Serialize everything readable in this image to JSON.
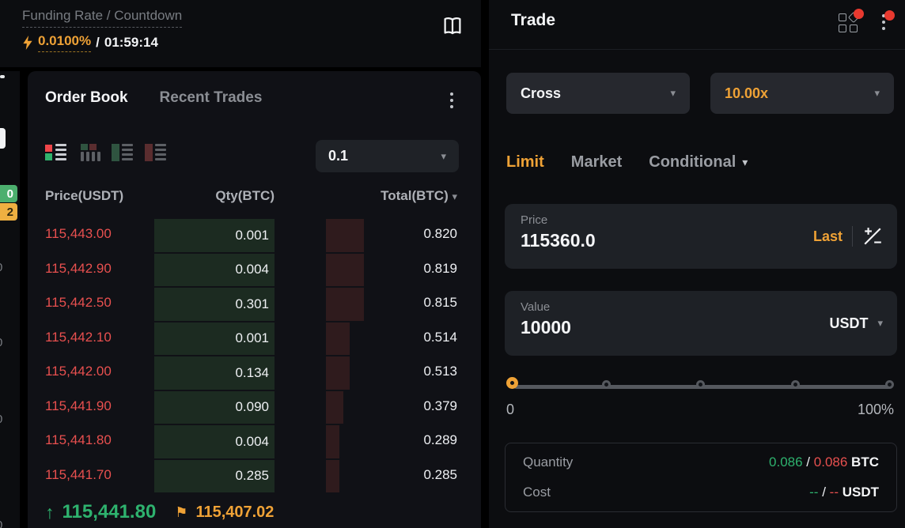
{
  "funding_panel": {
    "title": "Funding Rate / Countdown",
    "rate": "0.0100%",
    "separator": "/",
    "countdown": "01:59:14"
  },
  "left_edge": {
    "badge_green": "0",
    "badge_amber": "2",
    "clipped_digits": [
      "0",
      "0",
      "0",
      "0"
    ]
  },
  "order_book": {
    "tab_order_book": "Order Book",
    "tab_recent_trades": "Recent Trades",
    "precision_selected": "0.1",
    "col_price": "Price(USDT)",
    "col_qty": "Qty(BTC)",
    "col_total": "Total(BTC)",
    "asks": [
      {
        "price": "115,443.00",
        "qty": "0.001",
        "total": "0.820"
      },
      {
        "price": "115,442.90",
        "qty": "0.004",
        "total": "0.819"
      },
      {
        "price": "115,442.50",
        "qty": "0.301",
        "total": "0.815"
      },
      {
        "price": "115,442.10",
        "qty": "0.001",
        "total": "0.514"
      },
      {
        "price": "115,442.00",
        "qty": "0.134",
        "total": "0.513"
      },
      {
        "price": "115,441.90",
        "qty": "0.090",
        "total": "0.379"
      },
      {
        "price": "115,441.80",
        "qty": "0.004",
        "total": "0.289"
      },
      {
        "price": "115,441.70",
        "qty": "0.285",
        "total": "0.285"
      }
    ],
    "last_price": "115,441.80",
    "mark_price": "115,407.02"
  },
  "trade_panel": {
    "title": "Trade",
    "margin_mode": "Cross",
    "leverage": "10.00x",
    "tab_limit": "Limit",
    "tab_market": "Market",
    "tab_conditional": "Conditional",
    "price_field": {
      "label": "Price",
      "value": "115360.0",
      "last_label": "Last"
    },
    "value_field": {
      "label": "Value",
      "value": "10000",
      "unit": "USDT"
    },
    "slider": {
      "min_label": "0",
      "max_label": "100%"
    },
    "summary": {
      "quantity_label": "Quantity",
      "quantity_long": "0.086",
      "quantity_short": "0.086",
      "quantity_sep": "/",
      "quantity_unit": "BTC",
      "cost_label": "Cost",
      "cost_long": "--",
      "cost_short": "--",
      "cost_sep": "/",
      "cost_unit": "USDT"
    }
  },
  "colors": {
    "accent_orange": "#efa236",
    "up_green": "#2eb26e",
    "down_red": "#e8504f",
    "qty_cell_bg": "#1c2b21",
    "depth_bar_bg": "#2f1b1d"
  }
}
